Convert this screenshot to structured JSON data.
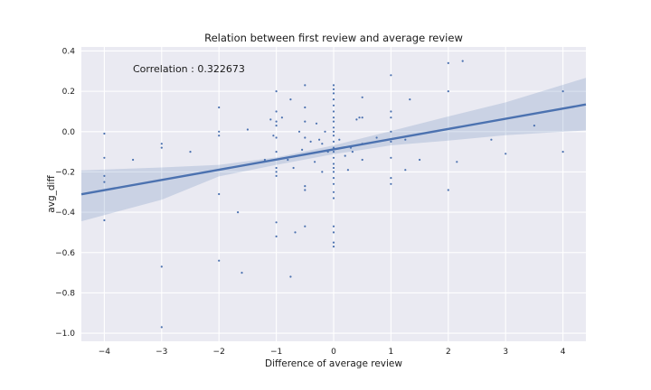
{
  "chart_data": {
    "type": "scatter",
    "title": "Relation between first review and average review",
    "xlabel": "Difference of average review",
    "ylabel": "avg_diff",
    "annotation": "Correlation : 0.322673",
    "xlim": [
      -4.4,
      4.4
    ],
    "ylim": [
      -1.04,
      0.42
    ],
    "xticks": [
      -4,
      -3,
      -2,
      -1,
      0,
      1,
      2,
      3,
      4
    ],
    "xtick_labels": [
      "−4",
      "−3",
      "−2",
      "−1",
      "0",
      "1",
      "2",
      "3",
      "4"
    ],
    "yticks": [
      -1.0,
      -0.8,
      -0.6,
      -0.4,
      -0.2,
      0.0,
      0.2,
      0.4
    ],
    "ytick_labels": [
      "−1.0",
      "−0.8",
      "−0.6",
      "−0.4",
      "−0.2",
      "0.0",
      "0.2",
      "0.4"
    ],
    "grid": true,
    "regression": {
      "slope": 0.0506,
      "intercept": -0.088
    },
    "confidence_band": {
      "x": [
        -4.4,
        -3.0,
        -2.0,
        -1.0,
        0.0,
        1.0,
        2.0,
        3.0,
        4.4
      ],
      "upper": [
        -0.192,
        -0.178,
        -0.165,
        -0.128,
        -0.068,
        0.003,
        0.075,
        0.145,
        0.267
      ],
      "lower": [
        -0.445,
        -0.338,
        -0.222,
        -0.165,
        -0.112,
        -0.068,
        -0.045,
        -0.018,
        0.006
      ]
    },
    "colors": {
      "points": "#4c72b0",
      "line": "#4c72b0",
      "band": "#4c72b0",
      "plot_background": "#eaeaf2",
      "grid": "#ffffff"
    },
    "points": [
      {
        "x": -4,
        "y": -0.01
      },
      {
        "x": -4,
        "y": -0.13
      },
      {
        "x": -4,
        "y": -0.22
      },
      {
        "x": -4,
        "y": -0.25
      },
      {
        "x": -4,
        "y": -0.44
      },
      {
        "x": -3.5,
        "y": -0.14
      },
      {
        "x": -3,
        "y": -0.06
      },
      {
        "x": -3,
        "y": -0.08
      },
      {
        "x": -3,
        "y": -0.67
      },
      {
        "x": -3,
        "y": -0.97
      },
      {
        "x": -2.5,
        "y": -0.1
      },
      {
        "x": -2,
        "y": 0.12
      },
      {
        "x": -2,
        "y": 0.0
      },
      {
        "x": -2,
        "y": -0.02
      },
      {
        "x": -2,
        "y": -0.31
      },
      {
        "x": -2,
        "y": -0.64
      },
      {
        "x": -1.6,
        "y": -0.7
      },
      {
        "x": -1.67,
        "y": -0.4
      },
      {
        "x": -1.5,
        "y": 0.01
      },
      {
        "x": -1.2,
        "y": -0.14
      },
      {
        "x": -1.1,
        "y": 0.06
      },
      {
        "x": -1.05,
        "y": -0.02
      },
      {
        "x": -1,
        "y": 0.2
      },
      {
        "x": -1,
        "y": 0.1
      },
      {
        "x": -1,
        "y": 0.05
      },
      {
        "x": -1,
        "y": 0.03
      },
      {
        "x": -1,
        "y": -0.03
      },
      {
        "x": -1,
        "y": -0.1
      },
      {
        "x": -1,
        "y": -0.18
      },
      {
        "x": -1,
        "y": -0.2
      },
      {
        "x": -1,
        "y": -0.22
      },
      {
        "x": -1,
        "y": -0.45
      },
      {
        "x": -1,
        "y": -0.52
      },
      {
        "x": -0.9,
        "y": 0.07
      },
      {
        "x": -0.8,
        "y": -0.14
      },
      {
        "x": -0.75,
        "y": 0.16
      },
      {
        "x": -0.75,
        "y": -0.72
      },
      {
        "x": -0.7,
        "y": -0.18
      },
      {
        "x": -0.67,
        "y": -0.5
      },
      {
        "x": -0.6,
        "y": 0.0
      },
      {
        "x": -0.55,
        "y": -0.09
      },
      {
        "x": -0.5,
        "y": 0.23
      },
      {
        "x": -0.5,
        "y": 0.12
      },
      {
        "x": -0.5,
        "y": 0.05
      },
      {
        "x": -0.5,
        "y": -0.03
      },
      {
        "x": -0.5,
        "y": -0.27
      },
      {
        "x": -0.5,
        "y": -0.29
      },
      {
        "x": -0.5,
        "y": -0.47
      },
      {
        "x": -0.4,
        "y": -0.05
      },
      {
        "x": -0.33,
        "y": -0.15
      },
      {
        "x": -0.3,
        "y": 0.04
      },
      {
        "x": -0.25,
        "y": -0.04
      },
      {
        "x": -0.2,
        "y": -0.06
      },
      {
        "x": -0.2,
        "y": -0.2
      },
      {
        "x": -0.15,
        "y": 0.0
      },
      {
        "x": -0.1,
        "y": -0.1
      },
      {
        "x": 0,
        "y": 0.23
      },
      {
        "x": 0,
        "y": 0.21
      },
      {
        "x": 0,
        "y": 0.19
      },
      {
        "x": 0,
        "y": 0.16
      },
      {
        "x": 0,
        "y": 0.13
      },
      {
        "x": 0,
        "y": 0.1
      },
      {
        "x": 0,
        "y": 0.07
      },
      {
        "x": 0,
        "y": 0.05
      },
      {
        "x": 0,
        "y": 0.02
      },
      {
        "x": 0,
        "y": 0.0
      },
      {
        "x": 0,
        "y": -0.02
      },
      {
        "x": 0,
        "y": -0.05
      },
      {
        "x": 0,
        "y": -0.08
      },
      {
        "x": 0,
        "y": -0.1
      },
      {
        "x": 0,
        "y": -0.13
      },
      {
        "x": 0,
        "y": -0.16
      },
      {
        "x": 0,
        "y": -0.18
      },
      {
        "x": 0,
        "y": -0.2
      },
      {
        "x": 0,
        "y": -0.23
      },
      {
        "x": 0,
        "y": -0.26
      },
      {
        "x": 0,
        "y": -0.3
      },
      {
        "x": 0,
        "y": -0.33
      },
      {
        "x": 0,
        "y": -0.47
      },
      {
        "x": 0,
        "y": -0.5
      },
      {
        "x": 0,
        "y": -0.55
      },
      {
        "x": 0,
        "y": -0.57
      },
      {
        "x": 0.1,
        "y": -0.04
      },
      {
        "x": 0.2,
        "y": -0.12
      },
      {
        "x": 0.25,
        "y": -0.19
      },
      {
        "x": 0.3,
        "y": -0.08
      },
      {
        "x": 0.33,
        "y": -0.1
      },
      {
        "x": 0.4,
        "y": 0.06
      },
      {
        "x": 0.45,
        "y": 0.07
      },
      {
        "x": 0.5,
        "y": 0.17
      },
      {
        "x": 0.5,
        "y": 0.07
      },
      {
        "x": 0.5,
        "y": -0.06
      },
      {
        "x": 0.5,
        "y": -0.14
      },
      {
        "x": 0.75,
        "y": -0.03
      },
      {
        "x": 1,
        "y": 0.28
      },
      {
        "x": 1,
        "y": 0.1
      },
      {
        "x": 1,
        "y": 0.07
      },
      {
        "x": 1,
        "y": 0.0
      },
      {
        "x": 1,
        "y": -0.05
      },
      {
        "x": 1,
        "y": -0.13
      },
      {
        "x": 1,
        "y": -0.23
      },
      {
        "x": 1,
        "y": -0.26
      },
      {
        "x": 1.25,
        "y": -0.04
      },
      {
        "x": 1.25,
        "y": -0.19
      },
      {
        "x": 1.33,
        "y": 0.16
      },
      {
        "x": 1.5,
        "y": -0.14
      },
      {
        "x": 2,
        "y": 0.34
      },
      {
        "x": 2,
        "y": 0.2
      },
      {
        "x": 2,
        "y": -0.29
      },
      {
        "x": 2.15,
        "y": -0.15
      },
      {
        "x": 2.25,
        "y": 0.35
      },
      {
        "x": 2.75,
        "y": -0.04
      },
      {
        "x": 3,
        "y": -0.11
      },
      {
        "x": 3.5,
        "y": 0.03
      },
      {
        "x": 4,
        "y": 0.2
      },
      {
        "x": 4,
        "y": -0.1
      }
    ]
  }
}
